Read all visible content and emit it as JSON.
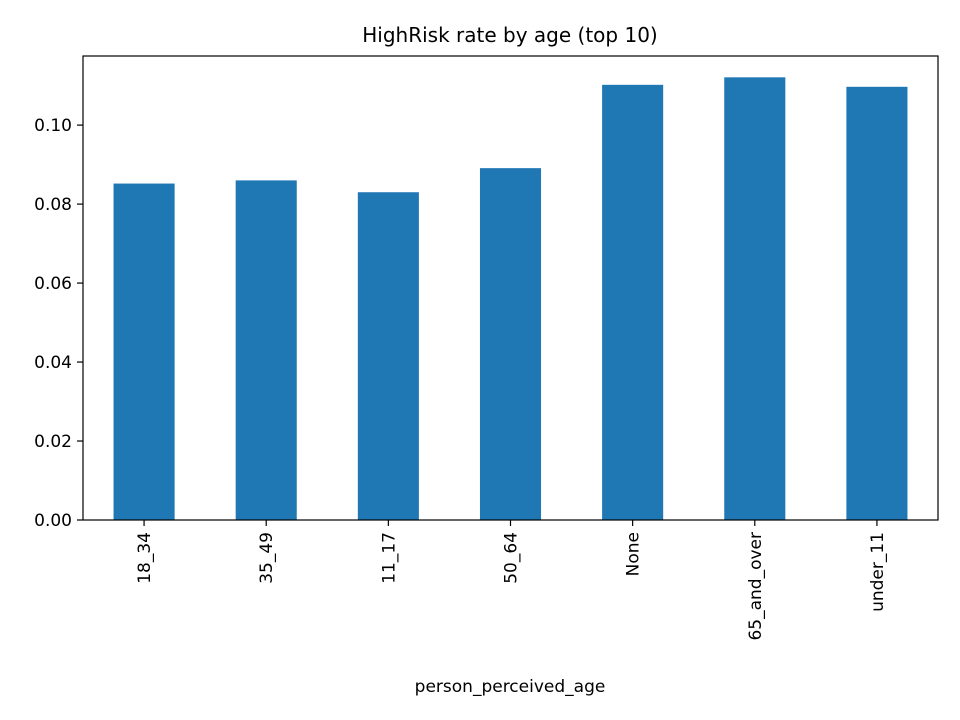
{
  "chart_data": {
    "type": "bar",
    "title": "HighRisk rate by age (top 10)",
    "xlabel": "person_perceived_age",
    "ylabel": "",
    "categories": [
      "18_34",
      "35_49",
      "11_17",
      "50_64",
      "None",
      "65_and_over",
      "under_11"
    ],
    "values": [
      0.0852,
      0.086,
      0.083,
      0.0891,
      0.1102,
      0.1121,
      0.1097
    ],
    "ylim": [
      0,
      0.1175
    ],
    "yticks": [
      0.0,
      0.02,
      0.04,
      0.06,
      0.08,
      0.1
    ],
    "ytick_labels": [
      "0.00",
      "0.02",
      "0.04",
      "0.06",
      "0.08",
      "0.10"
    ],
    "bar_color": "#1f77b4",
    "grid": false,
    "legend": "none"
  }
}
